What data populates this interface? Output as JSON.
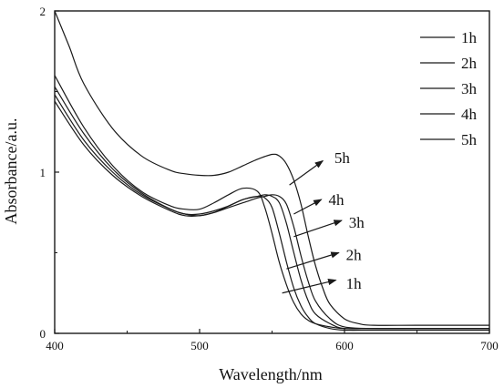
{
  "chart_data": {
    "type": "line",
    "title": "",
    "xlabel": "Wavelength/nm",
    "ylabel": "Absorbance/a.u.",
    "xlim": [
      400,
      700
    ],
    "ylim": [
      0,
      2
    ],
    "x_ticks": [
      "400",
      "500",
      "600",
      "700"
    ],
    "y_ticks": [
      "0",
      "1",
      "2"
    ],
    "grid": false,
    "legend_position": "top-right",
    "line_color": "#1a1a1a",
    "series": [
      {
        "name": "1h",
        "x": [
          400,
          420,
          440,
          460,
          480,
          490,
          500,
          510,
          520,
          530,
          540,
          545,
          550,
          555,
          560,
          565,
          570,
          575,
          580,
          590,
          600,
          620,
          650,
          700
        ],
        "y": [
          1.44,
          1.17,
          0.98,
          0.85,
          0.76,
          0.73,
          0.73,
          0.75,
          0.79,
          0.83,
          0.85,
          0.84,
          0.78,
          0.62,
          0.44,
          0.28,
          0.17,
          0.1,
          0.06,
          0.03,
          0.02,
          0.02,
          0.02,
          0.02
        ]
      },
      {
        "name": "2h",
        "x": [
          400,
          420,
          440,
          460,
          480,
          490,
          500,
          510,
          520,
          530,
          540,
          545,
          550,
          555,
          560,
          565,
          570,
          575,
          580,
          590,
          600,
          620,
          650,
          700
        ],
        "y": [
          1.48,
          1.2,
          1.0,
          0.86,
          0.77,
          0.74,
          0.74,
          0.76,
          0.79,
          0.83,
          0.85,
          0.86,
          0.85,
          0.81,
          0.68,
          0.5,
          0.33,
          0.2,
          0.12,
          0.06,
          0.03,
          0.03,
          0.03,
          0.03
        ]
      },
      {
        "name": "3h",
        "x": [
          400,
          420,
          440,
          460,
          480,
          490,
          500,
          510,
          520,
          530,
          540,
          545,
          550,
          555,
          560,
          565,
          570,
          575,
          580,
          590,
          600,
          620,
          650,
          700
        ],
        "y": [
          1.53,
          1.24,
          1.02,
          0.87,
          0.77,
          0.74,
          0.73,
          0.75,
          0.78,
          0.81,
          0.84,
          0.85,
          0.86,
          0.85,
          0.8,
          0.66,
          0.48,
          0.32,
          0.2,
          0.09,
          0.04,
          0.03,
          0.03,
          0.03
        ]
      },
      {
        "name": "4h",
        "x": [
          400,
          420,
          440,
          460,
          480,
          490,
          500,
          510,
          520,
          530,
          540,
          545,
          550,
          555,
          560,
          565,
          570,
          575,
          580,
          590,
          600,
          620,
          650,
          700
        ],
        "y": [
          1.6,
          1.28,
          1.04,
          0.88,
          0.79,
          0.77,
          0.77,
          0.81,
          0.86,
          0.9,
          0.88,
          0.78,
          0.62,
          0.44,
          0.3,
          0.19,
          0.12,
          0.08,
          0.06,
          0.04,
          0.03,
          0.03,
          0.03,
          0.03
        ]
      },
      {
        "name": "5h",
        "x": [
          400,
          410,
          420,
          440,
          460,
          480,
          490,
          500,
          510,
          520,
          530,
          540,
          550,
          555,
          560,
          565,
          570,
          575,
          580,
          585,
          590,
          600,
          610,
          620,
          650,
          700
        ],
        "y": [
          2.0,
          1.78,
          1.55,
          1.27,
          1.1,
          1.01,
          0.99,
          0.98,
          0.98,
          1.0,
          1.04,
          1.08,
          1.11,
          1.1,
          1.05,
          0.95,
          0.8,
          0.6,
          0.42,
          0.28,
          0.18,
          0.09,
          0.06,
          0.05,
          0.05,
          0.05
        ]
      }
    ],
    "annotations": [
      {
        "text": "5h",
        "series": "5h",
        "arrow_from": [
          562,
          0.92
        ],
        "arrow_to": [
          585,
          1.07
        ],
        "text_at": [
          593,
          1.09
        ]
      },
      {
        "text": "4h",
        "series": "4h",
        "arrow_from": [
          565,
          0.74
        ],
        "arrow_to": [
          584,
          0.83
        ],
        "text_at": [
          589,
          0.83
        ]
      },
      {
        "text": "3h",
        "series": "3h",
        "arrow_from": [
          565,
          0.6
        ],
        "arrow_to": [
          598,
          0.7
        ],
        "text_at": [
          603,
          0.69
        ]
      },
      {
        "text": "2h",
        "series": "2h",
        "arrow_from": [
          560,
          0.4
        ],
        "arrow_to": [
          596,
          0.5
        ],
        "text_at": [
          601,
          0.49
        ]
      },
      {
        "text": "1h",
        "series": "1h",
        "arrow_from": [
          557,
          0.25
        ],
        "arrow_to": [
          594,
          0.33
        ],
        "text_at": [
          601,
          0.31
        ]
      }
    ]
  }
}
